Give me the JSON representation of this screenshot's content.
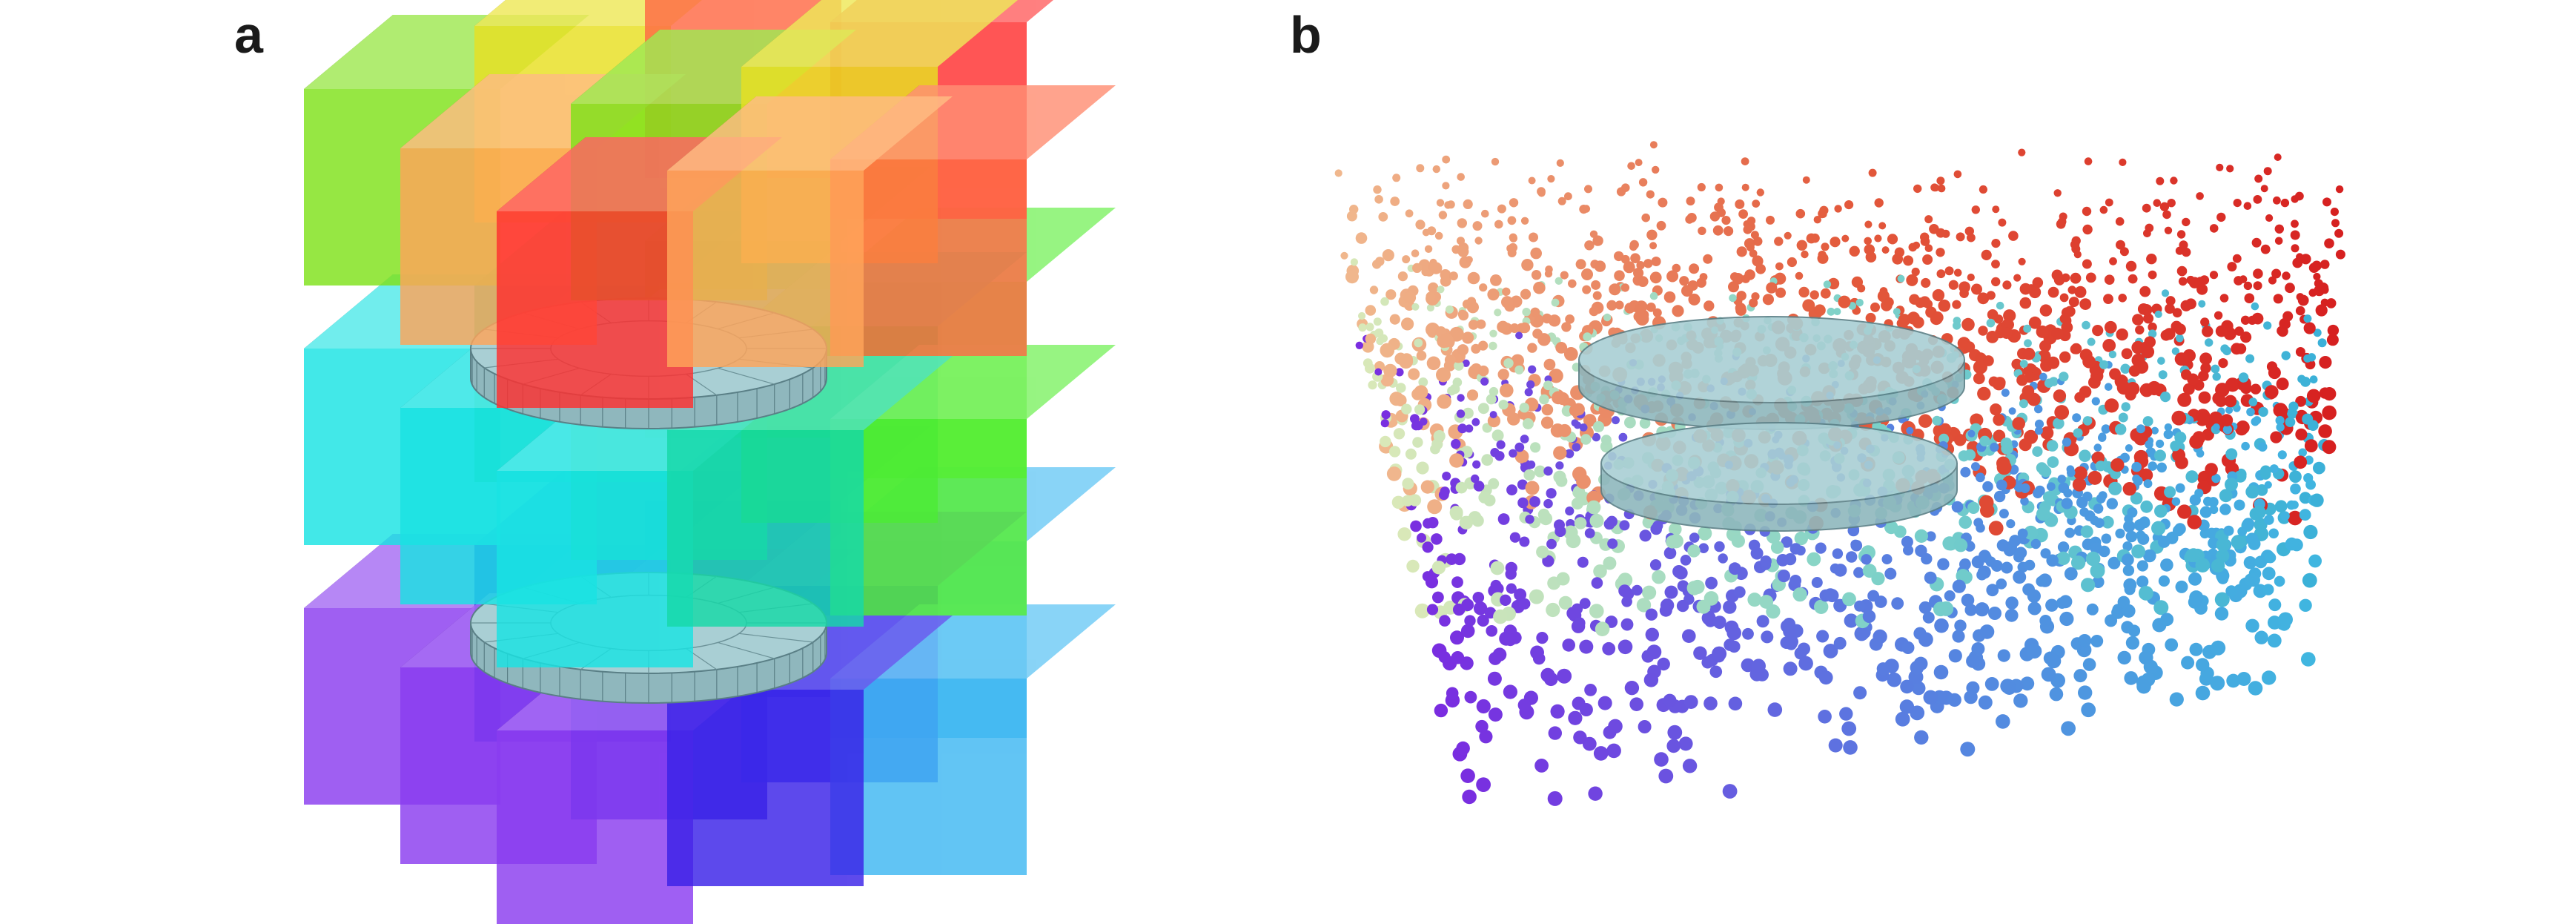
{
  "panels": [
    {
      "label": "a"
    },
    {
      "label": "b"
    }
  ],
  "colors": {
    "top_layer": [
      "#7fe21a",
      "#e8e022",
      "#ff6a45",
      "#ff3030",
      "#ffa55a"
    ],
    "middle_layer": [
      "#19e3e3",
      "#16d9a8",
      "#22e040",
      "#55ee33"
    ],
    "bottom_layer": [
      "#8a3cf0",
      "#3a22e8",
      "#3a44f2",
      "#3fb8f2"
    ],
    "disc": "#a9cfd4",
    "points_top": [
      "#f0b78d",
      "#e35a3c",
      "#d62020"
    ],
    "points_middle": [
      "#d9e8b8",
      "#7fd2c8",
      "#3ab0d8"
    ],
    "points_bottom": [
      "#7a2ce0",
      "#5a7ae0",
      "#40b6e0"
    ]
  }
}
